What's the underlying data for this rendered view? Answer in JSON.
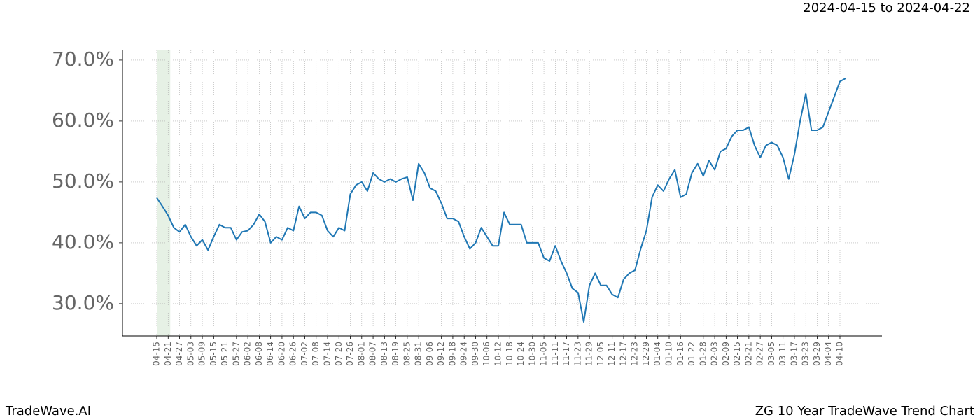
{
  "chart_data": {
    "type": "line",
    "header": "2024-04-15 to 2024-04-22",
    "footer_left": "TradeWave.AI",
    "footer_right": "ZG 10 Year TradeWave Trend Chart",
    "categories": [
      "04-15",
      null,
      "04-21",
      null,
      "04-27",
      null,
      "05-03",
      null,
      "05-09",
      null,
      "05-15",
      null,
      "05-21",
      null,
      "05-27",
      null,
      "06-02",
      null,
      "06-08",
      null,
      "06-14",
      null,
      "06-20",
      null,
      "06-26",
      null,
      "07-02",
      null,
      "07-08",
      null,
      "07-14",
      null,
      "07-20",
      null,
      "07-26",
      null,
      "08-01",
      null,
      "08-07",
      null,
      "08-13",
      null,
      "08-19",
      null,
      "08-25",
      null,
      "08-31",
      null,
      "09-06",
      null,
      "09-12",
      null,
      "09-18",
      null,
      "09-24",
      null,
      "09-30",
      null,
      "10-06",
      null,
      "10-12",
      null,
      "10-18",
      null,
      "10-24",
      null,
      "10-30",
      null,
      "11-05",
      null,
      "11-11",
      null,
      "11-17",
      null,
      "11-23",
      null,
      "11-29",
      null,
      "12-05",
      null,
      "12-11",
      null,
      "12-17",
      null,
      "12-23",
      null,
      "12-29",
      null,
      "01-04",
      null,
      "01-10",
      null,
      "01-16",
      null,
      "01-22",
      null,
      "01-28",
      null,
      "02-03",
      null,
      "02-09",
      null,
      "02-15",
      null,
      "02-21",
      null,
      "02-27",
      null,
      "03-05",
      null,
      "03-11",
      null,
      "03-17",
      null,
      "03-23",
      null,
      "03-29",
      null,
      "04-04",
      null,
      "04-10",
      null
    ],
    "series": [
      {
        "color": "#1f77b4",
        "values": [
          47.4,
          46.0,
          44.5,
          42.5,
          41.8,
          43.0,
          41.0,
          39.5,
          40.5,
          38.8,
          41.0,
          43.0,
          42.5,
          42.5,
          40.5,
          41.8,
          42.0,
          43.0,
          44.7,
          43.5,
          40.0,
          41.0,
          40.5,
          42.5,
          42.0,
          46.0,
          44.0,
          45.0,
          45.0,
          44.5,
          42.0,
          41.0,
          42.5,
          42.0,
          48.0,
          49.5,
          50.0,
          48.5,
          51.5,
          50.5,
          50.0,
          50.5,
          50.0,
          50.5,
          50.8,
          47.0,
          53.0,
          51.5,
          49.0,
          48.5,
          46.5,
          44.0,
          44.0,
          43.5,
          41.0,
          39.0,
          40.0,
          42.5,
          41.0,
          39.5,
          39.5,
          45.0,
          43.0,
          43.0,
          43.0,
          40.0,
          40.0,
          40.0,
          37.5,
          37.0,
          39.5,
          37.0,
          35.0,
          32.5,
          31.8,
          27.0,
          33.0,
          35.0,
          33.0,
          33.0,
          31.5,
          31.0,
          34.0,
          35.0,
          35.5,
          39.0,
          42.0,
          47.5,
          49.5,
          48.5,
          50.5,
          52.0,
          47.5,
          48.0,
          51.5,
          53.0,
          51.0,
          53.5,
          52.0,
          55.0,
          55.5,
          57.5,
          58.5,
          58.5,
          59.0,
          56.0,
          54.0,
          56.0,
          56.5,
          56.0,
          54.0,
          50.5,
          54.5,
          60.0,
          64.5,
          58.5,
          58.5,
          59.0,
          61.5,
          64.0,
          66.5,
          67.0
        ]
      }
    ],
    "ylim": [
      24.7,
      71.6
    ],
    "yticks": [
      {
        "value": 30,
        "label": "30.0%"
      },
      {
        "value": 40,
        "label": "40.0%"
      },
      {
        "value": 50,
        "label": "50.0%"
      },
      {
        "value": 60,
        "label": "60.0%"
      },
      {
        "value": 70,
        "label": "70.0%"
      }
    ],
    "grid": true,
    "shade": {
      "from": "04-15",
      "to": "04-21",
      "color": "#d5e8d4"
    }
  }
}
